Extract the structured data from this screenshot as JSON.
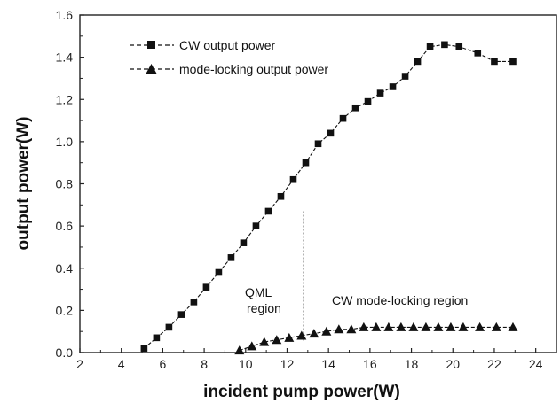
{
  "chart_data": {
    "type": "line",
    "xlabel": "incident pump power(W)",
    "ylabel": "output power(W)",
    "xlim": [
      2,
      25
    ],
    "ylim": [
      0,
      1.6
    ],
    "xticks": [
      2,
      4,
      6,
      8,
      10,
      12,
      14,
      16,
      18,
      20,
      22,
      24
    ],
    "yticks": [
      0.0,
      0.2,
      0.4,
      0.6,
      0.8,
      1.0,
      1.2,
      1.4,
      1.6
    ],
    "xtick_labels": [
      "2",
      "4",
      "6",
      "8",
      "10",
      "12",
      "14",
      "16",
      "18",
      "20",
      "22",
      "24"
    ],
    "ytick_labels": [
      "0.0",
      "0.2",
      "0.4",
      "0.6",
      "0.8",
      "1.0",
      "1.2",
      "1.4",
      "1.6"
    ],
    "grid": false,
    "legend_position": "top-left",
    "series": [
      {
        "name": "CW output power",
        "marker": "square",
        "color": "#111111",
        "x": [
          5.1,
          5.7,
          6.3,
          6.9,
          7.5,
          8.1,
          8.7,
          9.3,
          9.9,
          10.5,
          11.1,
          11.7,
          12.3,
          12.9,
          13.5,
          14.1,
          14.7,
          15.3,
          15.9,
          16.5,
          17.1,
          17.7,
          18.3,
          18.9,
          19.6,
          20.3,
          21.2,
          22.0,
          22.9
        ],
        "y": [
          0.02,
          0.07,
          0.12,
          0.18,
          0.24,
          0.31,
          0.38,
          0.45,
          0.52,
          0.6,
          0.67,
          0.74,
          0.82,
          0.9,
          0.99,
          1.04,
          1.11,
          1.16,
          1.19,
          1.23,
          1.26,
          1.31,
          1.38,
          1.45,
          1.46,
          1.45,
          1.42,
          1.38,
          1.38
        ]
      },
      {
        "name": "mode-locking output power",
        "marker": "triangle",
        "color": "#111111",
        "x": [
          9.7,
          10.3,
          10.9,
          11.5,
          12.1,
          12.7,
          13.3,
          13.9,
          14.5,
          15.1,
          15.7,
          16.3,
          16.9,
          17.5,
          18.1,
          18.7,
          19.3,
          19.9,
          20.5,
          21.3,
          22.1,
          22.9
        ],
        "y": [
          0.01,
          0.03,
          0.05,
          0.06,
          0.07,
          0.08,
          0.09,
          0.1,
          0.11,
          0.11,
          0.12,
          0.12,
          0.12,
          0.12,
          0.12,
          0.12,
          0.12,
          0.12,
          0.12,
          0.12,
          0.12,
          0.12
        ]
      }
    ],
    "annotations": {
      "divider_x": 12.8,
      "qml_line1": "QML",
      "qml_line2": "region",
      "cw_region": "CW mode-locking region"
    }
  }
}
